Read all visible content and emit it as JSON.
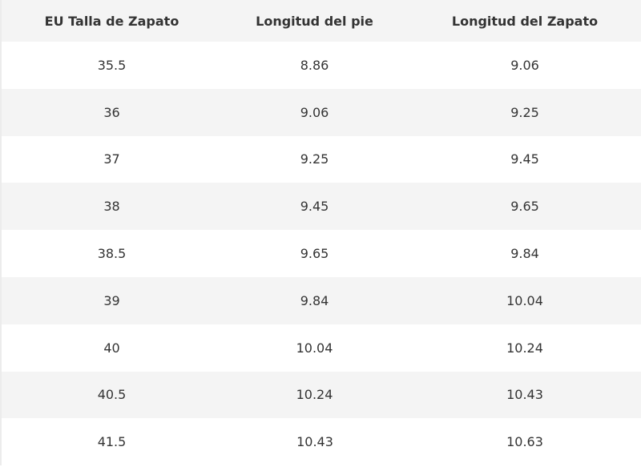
{
  "table": {
    "header": [
      "EU Talla de Zapato",
      "Longitud del pie",
      "Longitud del Zapato"
    ],
    "rows": [
      [
        "35.5",
        "8.86",
        "9.06"
      ],
      [
        "36",
        "9.06",
        "9.25"
      ],
      [
        "37",
        "9.25",
        "9.45"
      ],
      [
        "38",
        "9.45",
        "9.65"
      ],
      [
        "38.5",
        "9.65",
        "9.84"
      ],
      [
        "39",
        "9.84",
        "10.04"
      ],
      [
        "40",
        "10.04",
        "10.24"
      ],
      [
        "40.5",
        "10.24",
        "10.43"
      ],
      [
        "41.5",
        "10.43",
        "10.63"
      ]
    ]
  }
}
